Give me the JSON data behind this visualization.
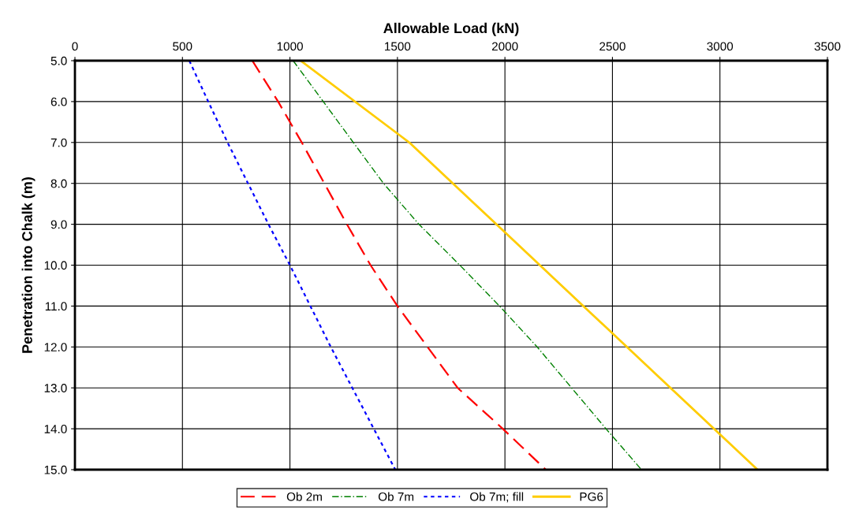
{
  "chart_data": {
    "type": "line",
    "xlabel": "Allowable Load (kN)",
    "ylabel": "Penetration into Chalk (m)",
    "xlim": [
      0,
      3500
    ],
    "xticks": [
      0,
      500,
      1000,
      1500,
      2000,
      2500,
      3000,
      3500
    ],
    "ylim": [
      15,
      5
    ],
    "yticks": [
      {
        "value": 5,
        "label": "5.0"
      },
      {
        "value": 6,
        "label": "6.0"
      },
      {
        "value": 7,
        "label": "7.0"
      },
      {
        "value": 8,
        "label": "8.0"
      },
      {
        "value": 9,
        "label": "9.0"
      },
      {
        "value": 10,
        "label": "10.0"
      },
      {
        "value": 11,
        "label": "11.0"
      },
      {
        "value": 12,
        "label": "12.0"
      },
      {
        "value": 13,
        "label": "13.0"
      },
      {
        "value": 14,
        "label": "14.0"
      },
      {
        "value": 15,
        "label": "15.0"
      }
    ],
    "grid": true,
    "legend": "bottom",
    "marker": "none",
    "series": [
      {
        "name": "Ob 2m",
        "color": "#ff0000",
        "line_style": "dashed",
        "x": [
          825,
          945,
          1055,
          1160,
          1265,
          1375,
          1500,
          1640,
          1780,
          1990,
          2190
        ],
        "values": [
          5,
          6,
          7,
          8,
          9,
          10,
          11,
          12,
          13,
          14,
          15
        ]
      },
      {
        "name": "Ob 7m",
        "color": "#008000",
        "line_style": "dashdot",
        "x": [
          1015,
          1155,
          1295,
          1435,
          1600,
          1790,
          1975,
          2150,
          2310,
          2470,
          2635
        ],
        "values": [
          5,
          6,
          7,
          8,
          9,
          10,
          11,
          12,
          13,
          14,
          15
        ]
      },
      {
        "name": "Ob 7m; fill",
        "color": "#0000ff",
        "line_style": "dotted",
        "x": [
          532,
          620,
          710,
          805,
          900,
          1000,
          1095,
          1190,
          1290,
          1390,
          1490
        ],
        "values": [
          5,
          6,
          7,
          8,
          9,
          10,
          11,
          12,
          13,
          14,
          15
        ]
      },
      {
        "name": "PG6",
        "color": "#ffcc00",
        "line_style": "solid",
        "x": [
          1050,
          1555,
          1960,
          2365,
          2770,
          3175
        ],
        "values": [
          5,
          7,
          9,
          11,
          13,
          15
        ]
      }
    ]
  }
}
